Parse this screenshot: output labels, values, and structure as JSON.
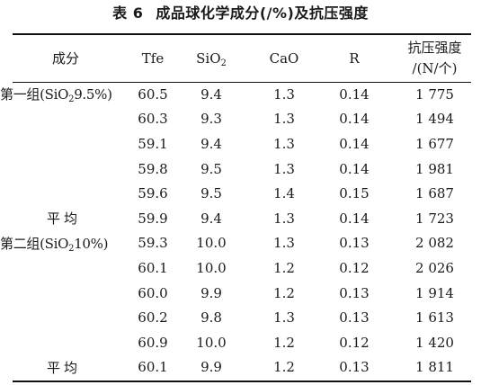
{
  "caption": {
    "label": "表 6",
    "title": "成品球化学成分(/%)及抗压强度"
  },
  "headers": {
    "component": "成分",
    "tfe": "Tfe",
    "sio2_main": "SiO",
    "sio2_sub": "2",
    "cao": "CaO",
    "r": "R",
    "strength_line1": "抗压强度",
    "strength_line2": "/(N/个)"
  },
  "groups": [
    {
      "name_prefix": "第一组(SiO",
      "name_sub": "2",
      "name_suffix": "9.5%)",
      "rows": [
        {
          "tfe": "60.5",
          "sio2": "9.4",
          "cao": "1.3",
          "r": "0.14",
          "strength": "1 775"
        },
        {
          "tfe": "60.3",
          "sio2": "9.3",
          "cao": "1.3",
          "r": "0.14",
          "strength": "1 494"
        },
        {
          "tfe": "59.1",
          "sio2": "9.4",
          "cao": "1.3",
          "r": "0.14",
          "strength": "1 677"
        },
        {
          "tfe": "59.8",
          "sio2": "9.5",
          "cao": "1.3",
          "r": "0.14",
          "strength": "1 981"
        },
        {
          "tfe": "59.6",
          "sio2": "9.5",
          "cao": "1.4",
          "r": "0.15",
          "strength": "1 687"
        }
      ],
      "average": {
        "label": "平均",
        "tfe": "59.9",
        "sio2": "9.4",
        "cao": "1.3",
        "r": "0.14",
        "strength": "1 723"
      }
    },
    {
      "name_prefix": "第二组(SiO",
      "name_sub": "2",
      "name_suffix": "10%)",
      "rows": [
        {
          "tfe": "59.3",
          "sio2": "10.0",
          "cao": "1.3",
          "r": "0.13",
          "strength": "2 082"
        },
        {
          "tfe": "60.1",
          "sio2": "10.0",
          "cao": "1.2",
          "r": "0.12",
          "strength": "2 026"
        },
        {
          "tfe": "60.0",
          "sio2": "9.9",
          "cao": "1.2",
          "r": "0.13",
          "strength": "1 914"
        },
        {
          "tfe": "60.2",
          "sio2": "9.8",
          "cao": "1.3",
          "r": "0.13",
          "strength": "1 613"
        },
        {
          "tfe": "60.9",
          "sio2": "10.0",
          "cao": "1.2",
          "r": "0.12",
          "strength": "1 420"
        }
      ],
      "average": {
        "label": "平均",
        "tfe": "60.1",
        "sio2": "9.9",
        "cao": "1.2",
        "r": "0.13",
        "strength": "1 811"
      }
    }
  ]
}
